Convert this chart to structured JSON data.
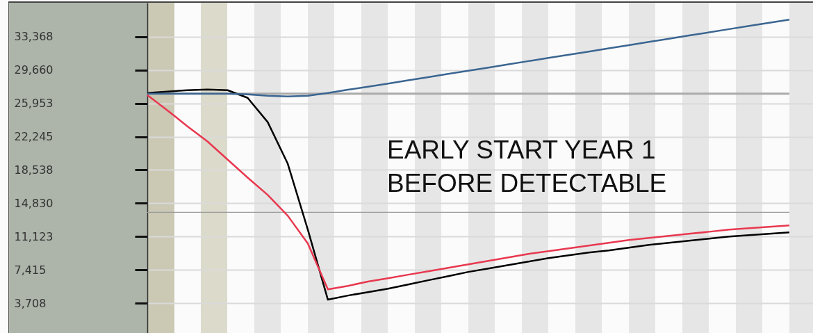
{
  "chart_data": {
    "type": "line",
    "categories": [
      null,
      null,
      null,
      null,
      null,
      null,
      null,
      null,
      null,
      null,
      null,
      null,
      null,
      null,
      null,
      null,
      null,
      null,
      null,
      null,
      null,
      null,
      null,
      null,
      null,
      null,
      null,
      null,
      null,
      null,
      null,
      null,
      null
    ],
    "series": [
      {
        "color": "#3a6591",
        "values": [
          27030,
          27030,
          27030,
          27030,
          27030,
          26960,
          26800,
          26730,
          26800,
          27110,
          27470,
          27810,
          28160,
          28520,
          28870,
          29230,
          29580,
          29940,
          30300,
          30660,
          31010,
          31370,
          31720,
          32080,
          32430,
          32790,
          33150,
          33510,
          33860,
          34220,
          34570,
          34930,
          35280
        ]
      },
      {
        "color": "#000000",
        "values": [
          27110,
          27260,
          27420,
          27500,
          27420,
          26570,
          23870,
          19230,
          11900,
          4100,
          4560,
          4940,
          5330,
          5790,
          6260,
          6720,
          7190,
          7570,
          7960,
          8340,
          8730,
          9040,
          9350,
          9580,
          9890,
          10200,
          10430,
          10660,
          10890,
          11120,
          11280,
          11430,
          11590
        ]
      },
      {
        "color": "#e8384f",
        "values": [
          26880,
          25180,
          23400,
          21710,
          19700,
          17690,
          15760,
          13440,
          10350,
          5250,
          5640,
          6110,
          6490,
          6880,
          7260,
          7650,
          8030,
          8420,
          8810,
          9190,
          9500,
          9810,
          10120,
          10430,
          10740,
          10970,
          11200,
          11430,
          11660,
          11900,
          12050,
          12210,
          12360
        ]
      }
    ],
    "ylim": [
      390,
      37150
    ],
    "yticks": [
      {
        "value": 3708,
        "label": "3,708"
      },
      {
        "value": 7415,
        "label": "7,415"
      },
      {
        "value": 11123,
        "label": "11,123"
      },
      {
        "value": 14830,
        "label": "14,830"
      },
      {
        "value": 18538,
        "label": "18,538"
      },
      {
        "value": 22245,
        "label": "22,245"
      },
      {
        "value": 25953,
        "label": "25,953"
      },
      {
        "value": 29660,
        "label": "29,660"
      },
      {
        "value": 33368,
        "label": "33,368"
      }
    ],
    "grid": "y",
    "tick_labels": "y",
    "ref_lines": [
      {
        "axis": "y",
        "value": 27030,
        "color": "#aaaaaa"
      },
      {
        "axis": "y",
        "value": 13830,
        "color": "#999999"
      }
    ],
    "annotations": [
      "EARLY START YEAR 1\nBEFORE DETECTABLE"
    ]
  }
}
